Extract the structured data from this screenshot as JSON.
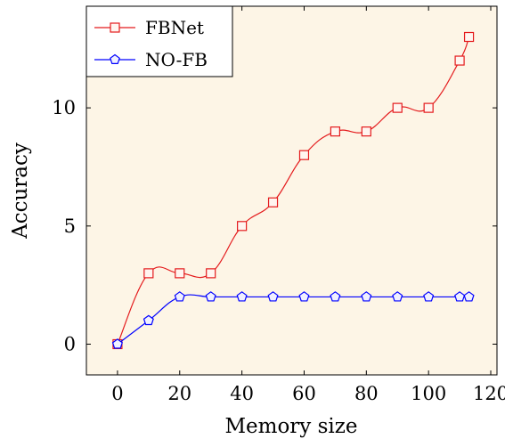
{
  "chart_data": {
    "type": "line",
    "xlabel": "Memory size",
    "ylabel": "Accuracy",
    "xlim": [
      -10,
      122
    ],
    "ylim": [
      -1.3,
      14.3
    ],
    "xticks": [
      0,
      20,
      40,
      60,
      80,
      100,
      120
    ],
    "yticks": [
      0,
      5,
      10
    ],
    "grid": false,
    "background": "#fdf5e6",
    "legend_position": "top-left",
    "series": [
      {
        "name": "FBNet",
        "color": "#e41a1c",
        "marker": "square",
        "x": [
          0,
          10,
          20,
          30,
          40,
          50,
          60,
          70,
          80,
          90,
          100,
          110,
          113
        ],
        "y": [
          0,
          3,
          3,
          3,
          5,
          6,
          8,
          9,
          9,
          10,
          10,
          12,
          13
        ]
      },
      {
        "name": "NO-FB",
        "color": "#0000ff",
        "marker": "pentagon",
        "x": [
          0,
          10,
          20,
          30,
          40,
          50,
          60,
          70,
          80,
          90,
          100,
          110,
          113
        ],
        "y": [
          0,
          1,
          2,
          2,
          2,
          2,
          2,
          2,
          2,
          2,
          2,
          2,
          2
        ]
      }
    ]
  }
}
